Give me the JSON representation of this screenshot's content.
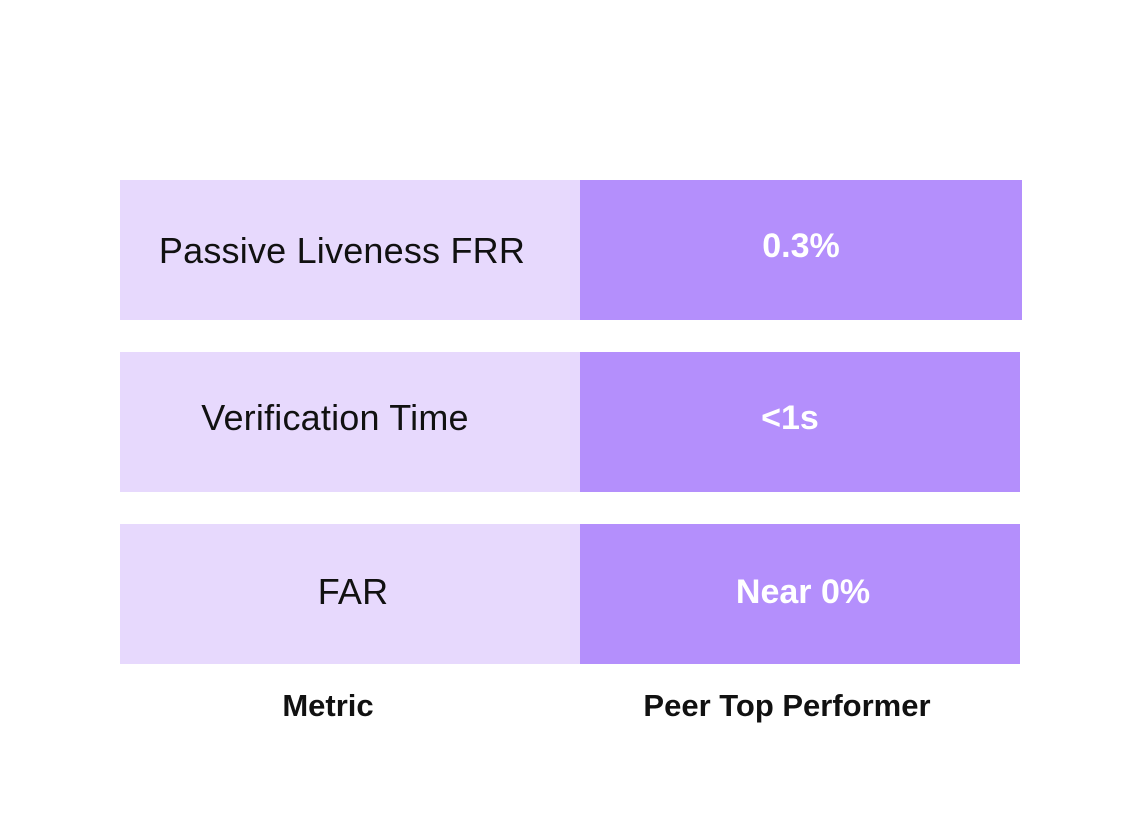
{
  "rows": [
    {
      "metric": "Passive Liveness FRR",
      "value": "0.3%"
    },
    {
      "metric": "Verification Time",
      "value": "<1s"
    },
    {
      "metric": "FAR",
      "value": "Near 0%"
    }
  ],
  "columns": {
    "metric_header": "Metric",
    "value_header": "Peer Top Performer"
  },
  "colors": {
    "metric_cell": "#e7d9fd",
    "value_cell": "#b48ffc",
    "value_text": "#ffffff",
    "metric_text": "#111111"
  }
}
